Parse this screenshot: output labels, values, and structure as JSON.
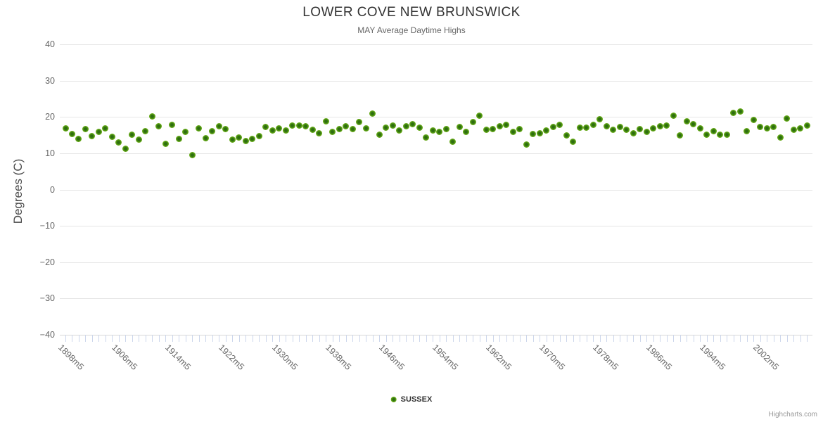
{
  "title": "LOWER COVE NEW BRUNSWICK",
  "subtitle": "MAY Average Daytime Highs",
  "y_axis": {
    "title": "Degrees (C)",
    "tick_values": [
      40,
      30,
      20,
      10,
      0,
      -10,
      -20,
      -30,
      -40
    ],
    "tick_labels": [
      "40",
      "30",
      "20",
      "10",
      "0",
      "−10",
      "−20",
      "−30",
      "−40"
    ]
  },
  "x_axis": {
    "tick_labels": [
      "1898m5",
      "1906m5",
      "1914m5",
      "1922m5",
      "1930m5",
      "1938m5",
      "1946m5",
      "1954m5",
      "1962m5",
      "1970m5",
      "1978m5",
      "1986m5",
      "1994m5",
      "2002m5"
    ],
    "label_interval": 8,
    "label_suffix": "m5"
  },
  "legend": {
    "series_label": "SUSSEX"
  },
  "credit": "Highcharts.com",
  "colors": {
    "series_edge": "#85c02c",
    "series_mid": "#5ea315",
    "series_core": "#2d6e0f",
    "grid": "#e6e6e6",
    "axis_line": "#d8d8d8",
    "tick": "#ccd6eb",
    "title_text": "#333333",
    "subtitle_text": "#666666",
    "axis_label": "#666666",
    "credit_text": "#999999"
  },
  "chart_data": {
    "type": "scatter",
    "title": "LOWER COVE NEW BRUNSWICK",
    "subtitle": "MAY Average Daytime Highs",
    "xlabel": "",
    "ylabel": "Degrees (C)",
    "ylim": [
      -40,
      40
    ],
    "grid": true,
    "legend_position": "bottom-center",
    "series": [
      {
        "name": "SUSSEX",
        "x": [
          1898,
          1899,
          1900,
          1901,
          1902,
          1903,
          1904,
          1905,
          1906,
          1907,
          1908,
          1909,
          1910,
          1911,
          1912,
          1913,
          1914,
          1915,
          1916,
          1917,
          1918,
          1919,
          1920,
          1921,
          1922,
          1923,
          1924,
          1925,
          1926,
          1927,
          1928,
          1929,
          1930,
          1931,
          1932,
          1933,
          1934,
          1935,
          1936,
          1937,
          1938,
          1939,
          1940,
          1941,
          1942,
          1943,
          1944,
          1945,
          1946,
          1947,
          1948,
          1949,
          1950,
          1951,
          1952,
          1953,
          1954,
          1955,
          1956,
          1957,
          1958,
          1959,
          1960,
          1961,
          1962,
          1963,
          1964,
          1965,
          1966,
          1967,
          1968,
          1969,
          1970,
          1971,
          1972,
          1973,
          1974,
          1975,
          1976,
          1977,
          1978,
          1979,
          1980,
          1981,
          1982,
          1983,
          1984,
          1985,
          1986,
          1987,
          1988,
          1989,
          1990,
          1991,
          1992,
          1993,
          1994,
          1995,
          1996,
          1997,
          1998,
          1999,
          2000,
          2001,
          2002,
          2003,
          2004,
          2005,
          2006,
          2007,
          2008,
          2009
        ],
        "values": [
          16.8,
          15.3,
          13.9,
          16.7,
          14.8,
          15.8,
          16.8,
          14.6,
          12.9,
          11.2,
          15.1,
          13.7,
          16.1,
          20.2,
          17.5,
          12.5,
          17.9,
          13.9,
          15.8,
          9.5,
          16.8,
          14.2,
          16.0,
          17.4,
          16.7,
          13.7,
          14.4,
          13.4,
          13.9,
          14.7,
          17.2,
          16.2,
          16.9,
          16.3,
          17.7,
          17.7,
          17.5,
          16.4,
          15.4,
          18.8,
          15.9,
          16.6,
          17.4,
          16.6,
          18.6,
          16.8,
          20.9,
          15.1,
          17.1,
          17.7,
          16.3,
          17.4,
          18.1,
          17.0,
          14.3,
          16.2,
          15.8,
          16.6,
          13.1,
          17.3,
          15.8,
          18.6,
          20.4,
          16.4,
          16.7,
          17.4,
          17.8,
          15.8,
          16.7,
          12.4,
          15.3,
          15.5,
          16.2,
          17.2,
          17.8,
          14.9,
          13.1,
          17.0,
          17.0,
          17.8,
          19.4,
          17.4,
          16.5,
          17.2,
          16.5,
          15.5,
          16.6,
          15.9,
          16.9,
          17.5,
          17.7,
          20.4,
          14.9,
          18.8,
          18.1,
          16.8,
          15.2,
          16.0,
          15.2,
          15.2,
          21.1,
          21.5,
          16.0,
          19.2,
          17.2,
          16.8,
          17.3,
          14.4,
          19.6,
          16.4,
          16.9,
          17.7
        ]
      }
    ]
  }
}
